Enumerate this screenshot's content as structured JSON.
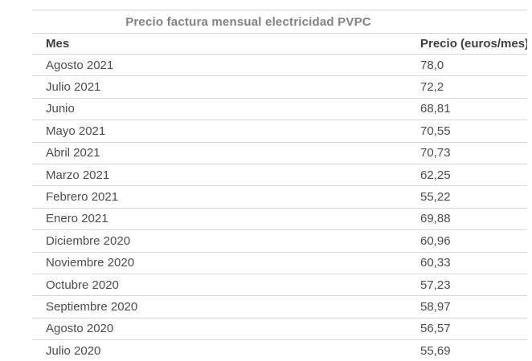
{
  "chart_data": {
    "type": "table",
    "title": "Precio factura mensual electricidad PVPC",
    "columns": [
      "Mes",
      "Precio (euros/mes)"
    ],
    "rows": [
      [
        "Agosto 2021",
        "78,0"
      ],
      [
        "Julio 2021",
        "72,2"
      ],
      [
        "Junio",
        "68,81"
      ],
      [
        "Mayo 2021",
        "70,55"
      ],
      [
        "Abril 2021",
        "70,73"
      ],
      [
        "Marzo 2021",
        "62,25"
      ],
      [
        "Febrero 2021",
        "55,22"
      ],
      [
        "Enero 2021",
        "69,88"
      ],
      [
        "Diciembre 2020",
        "60,96"
      ],
      [
        "Noviembre 2020",
        "60,33"
      ],
      [
        "Octubre 2020",
        "57,23"
      ],
      [
        "Septiembre 2020",
        "58,97"
      ],
      [
        "Agosto 2020",
        "56,57"
      ],
      [
        "Julio 2020",
        "55,69"
      ]
    ],
    "categories": [
      "Agosto 2021",
      "Julio 2021",
      "Junio",
      "Mayo 2021",
      "Abril 2021",
      "Marzo 2021",
      "Febrero 2021",
      "Enero 2021",
      "Diciembre 2020",
      "Noviembre 2020",
      "Octubre 2020",
      "Septiembre 2020",
      "Agosto 2020",
      "Julio 2020"
    ],
    "values": [
      78.0,
      72.2,
      68.81,
      70.55,
      70.73,
      62.25,
      55.22,
      69.88,
      60.96,
      60.33,
      57.23,
      58.97,
      56.57,
      55.69
    ],
    "ylabel": "Precio (euros/mes)",
    "xlabel": "Mes"
  },
  "colors": {
    "background": "#ffffff",
    "title_text": "#828282",
    "header_text": "#3f3f3f",
    "row_text": "#4c4c4c",
    "divider": "#d9d9d9"
  }
}
